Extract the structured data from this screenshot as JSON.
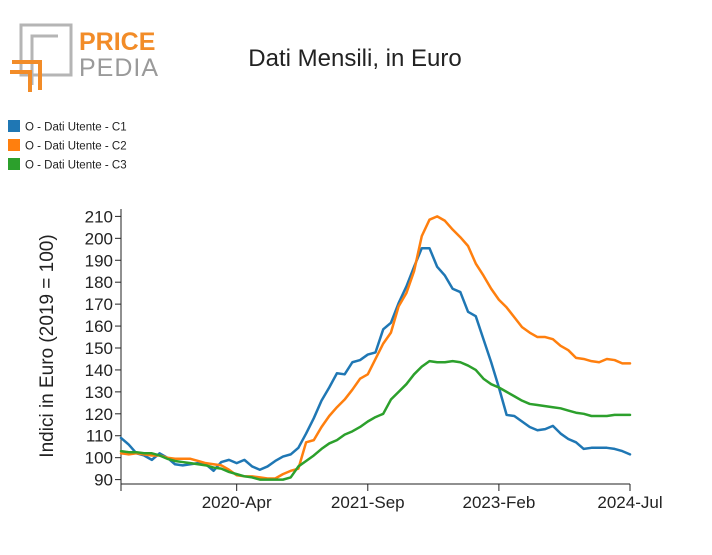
{
  "logo": {
    "word1": "PRICE",
    "word2": "PEDIA",
    "color_orange": "#f28c28",
    "color_gray": "#9a9a9a"
  },
  "chart_data": {
    "type": "line",
    "title": "Dati Mensili, in Euro",
    "ylabel": "Indici in Euro (2019 = 100)",
    "xlabel": "",
    "x_start": "2019-01",
    "x_end": "2024-07",
    "x_ticks": [
      {
        "date": "2020-04",
        "label": "2020-Apr"
      },
      {
        "date": "2021-09",
        "label": "2021-Sep"
      },
      {
        "date": "2023-02",
        "label": "2023-Feb"
      },
      {
        "date": "2024-07",
        "label": "2024-Jul"
      }
    ],
    "ylim": [
      88,
      212
    ],
    "y_ticks": [
      90,
      100,
      110,
      120,
      130,
      140,
      150,
      160,
      170,
      180,
      190,
      200,
      210
    ],
    "legend_position": "top-left",
    "grid": false,
    "series": [
      {
        "name": "O - Dati Utente - C1",
        "color": "#1f77b4",
        "x": [
          "2019-01",
          "2019-02",
          "2019-03",
          "2019-04",
          "2019-05",
          "2019-06",
          "2019-07",
          "2019-08",
          "2019-09",
          "2019-10",
          "2019-11",
          "2019-12",
          "2020-01",
          "2020-02",
          "2020-03",
          "2020-04",
          "2020-05",
          "2020-06",
          "2020-07",
          "2020-08",
          "2020-09",
          "2020-10",
          "2020-11",
          "2020-12",
          "2021-01",
          "2021-02",
          "2021-03",
          "2021-04",
          "2021-05",
          "2021-06",
          "2021-07",
          "2021-08",
          "2021-09",
          "2021-10",
          "2021-11",
          "2021-12",
          "2022-01",
          "2022-02",
          "2022-03",
          "2022-04",
          "2022-05",
          "2022-06",
          "2022-07",
          "2022-08",
          "2022-09",
          "2022-10",
          "2022-11",
          "2022-12",
          "2023-01",
          "2023-02",
          "2023-03",
          "2023-04",
          "2023-05",
          "2023-06",
          "2023-07",
          "2023-08",
          "2023-09",
          "2023-10",
          "2023-11",
          "2023-12",
          "2024-01",
          "2024-02",
          "2024-03",
          "2024-04",
          "2024-05",
          "2024-06",
          "2024-07"
        ],
        "values": [
          109,
          106,
          102,
          101,
          99,
          102,
          100,
          97,
          96.5,
          97,
          97.5,
          97,
          94,
          98,
          99,
          97.5,
          99,
          96,
          94.5,
          96,
          98.5,
          100.5,
          101.5,
          104.5,
          111,
          118,
          126,
          132,
          138.5,
          138,
          143.5,
          144.5,
          147,
          148,
          158.5,
          161.5,
          170.5,
          178,
          187,
          195.5,
          195.5,
          187,
          183,
          177,
          175.5,
          166.5,
          164.5,
          154,
          143.5,
          132,
          119.5,
          119,
          116.5,
          114,
          112.5,
          113,
          114.5,
          111,
          108.5,
          107,
          104,
          104.5,
          104.5,
          104.5,
          104,
          103,
          101.5
        ]
      },
      {
        "name": "O - Dati Utente - C2",
        "color": "#ff7f0e",
        "x": [
          "2019-01",
          "2019-02",
          "2019-03",
          "2019-04",
          "2019-05",
          "2019-06",
          "2019-07",
          "2019-08",
          "2019-09",
          "2019-10",
          "2019-11",
          "2019-12",
          "2020-01",
          "2020-02",
          "2020-03",
          "2020-04",
          "2020-05",
          "2020-06",
          "2020-07",
          "2020-08",
          "2020-09",
          "2020-10",
          "2020-11",
          "2020-12",
          "2021-01",
          "2021-02",
          "2021-03",
          "2021-04",
          "2021-05",
          "2021-06",
          "2021-07",
          "2021-08",
          "2021-09",
          "2021-10",
          "2021-11",
          "2021-12",
          "2022-01",
          "2022-02",
          "2022-03",
          "2022-04",
          "2022-05",
          "2022-06",
          "2022-07",
          "2022-08",
          "2022-09",
          "2022-10",
          "2022-11",
          "2022-12",
          "2023-01",
          "2023-02",
          "2023-03",
          "2023-04",
          "2023-05",
          "2023-06",
          "2023-07",
          "2023-08",
          "2023-09",
          "2023-10",
          "2023-11",
          "2023-12",
          "2024-01",
          "2024-02",
          "2024-03",
          "2024-04",
          "2024-05",
          "2024-06",
          "2024-07"
        ],
        "values": [
          102,
          101.5,
          102,
          101.5,
          101,
          101,
          100,
          99.5,
          99.5,
          99.5,
          98.5,
          97.5,
          97,
          96.5,
          94.5,
          92,
          91.5,
          91.5,
          91,
          90.5,
          90.5,
          92.5,
          94,
          95,
          107,
          108,
          114,
          119,
          123,
          126.5,
          131,
          136,
          138,
          145,
          152,
          157,
          169,
          175,
          185,
          201,
          208.5,
          210,
          208,
          204,
          200.5,
          196.5,
          188.5,
          183,
          177,
          172,
          168.5,
          164,
          159.5,
          157,
          155,
          155,
          154,
          151,
          149,
          145.5,
          145,
          144,
          143.5,
          145,
          144.5,
          143,
          143
        ]
      },
      {
        "name": "O - Dati Utente - C3",
        "color": "#2ca02c",
        "x": [
          "2019-01",
          "2019-02",
          "2019-03",
          "2019-04",
          "2019-05",
          "2019-06",
          "2019-07",
          "2019-08",
          "2019-09",
          "2019-10",
          "2019-11",
          "2019-12",
          "2020-01",
          "2020-02",
          "2020-03",
          "2020-04",
          "2020-05",
          "2020-06",
          "2020-07",
          "2020-08",
          "2020-09",
          "2020-10",
          "2020-11",
          "2020-12",
          "2021-01",
          "2021-02",
          "2021-03",
          "2021-04",
          "2021-05",
          "2021-06",
          "2021-07",
          "2021-08",
          "2021-09",
          "2021-10",
          "2021-11",
          "2021-12",
          "2022-01",
          "2022-02",
          "2022-03",
          "2022-04",
          "2022-05",
          "2022-06",
          "2022-07",
          "2022-08",
          "2022-09",
          "2022-10",
          "2022-11",
          "2022-12",
          "2023-01",
          "2023-02",
          "2023-03",
          "2023-04",
          "2023-05",
          "2023-06",
          "2023-07",
          "2023-08",
          "2023-09",
          "2023-10",
          "2023-11",
          "2023-12",
          "2024-01",
          "2024-02",
          "2024-03",
          "2024-04",
          "2024-05",
          "2024-06",
          "2024-07"
        ],
        "values": [
          103,
          102.5,
          102.5,
          102,
          102,
          101,
          99.5,
          98.5,
          98,
          97.5,
          97,
          96.5,
          95.5,
          95,
          93.5,
          92.5,
          91.5,
          91,
          90,
          90,
          90,
          90,
          91,
          96,
          98.5,
          101,
          104,
          106.5,
          108,
          110.5,
          112,
          114,
          116.5,
          118.5,
          120,
          126.5,
          130,
          133.5,
          138,
          141.5,
          144,
          143.5,
          143.5,
          144,
          143.5,
          142,
          140,
          136,
          133.5,
          132,
          130,
          128,
          126,
          124.5,
          124,
          123.5,
          123,
          122.5,
          121.5,
          120.5,
          120,
          119,
          119,
          119,
          119.5,
          119.5,
          119.5
        ]
      }
    ]
  }
}
